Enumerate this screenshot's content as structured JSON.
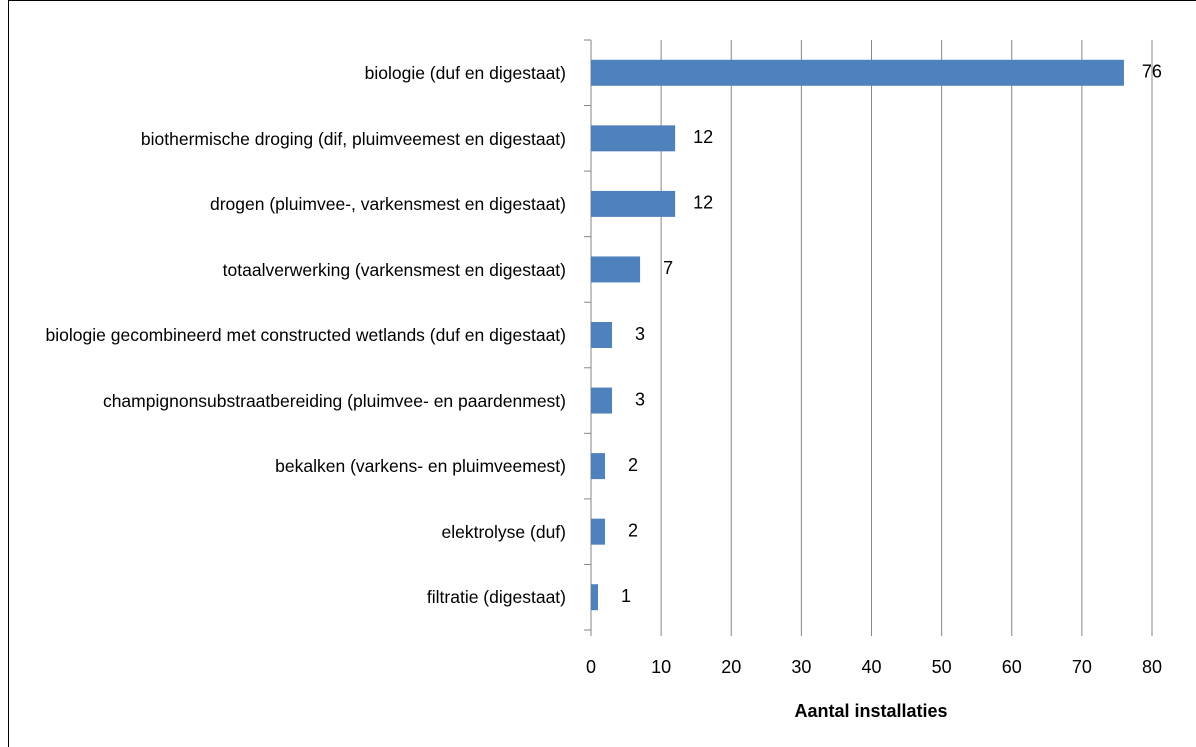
{
  "chart_data": {
    "type": "bar",
    "orientation": "horizontal",
    "categories": [
      "biologie (duf en digestaat)",
      "biothermische droging (dif, pluimveemest en digestaat)",
      "drogen (pluimvee-, varkensmest en digestaat)",
      "totaalverwerking (varkensmest en digestaat)",
      "biologie gecombineerd met constructed wetlands (duf en digestaat)",
      "champignonsubstraatbereiding (pluimvee- en paardenmest)",
      "bekalken (varkens- en pluimveemest)",
      "elektrolyse (duf)",
      "filtratie (digestaat)"
    ],
    "values": [
      76,
      12,
      12,
      7,
      3,
      3,
      2,
      2,
      1
    ],
    "color": "#4f81bd",
    "xlabel": "Aantal installaties",
    "xlim": [
      0,
      80
    ],
    "xticks": [
      0,
      10,
      20,
      30,
      40,
      50,
      60,
      70,
      80
    ],
    "grid": true
  }
}
